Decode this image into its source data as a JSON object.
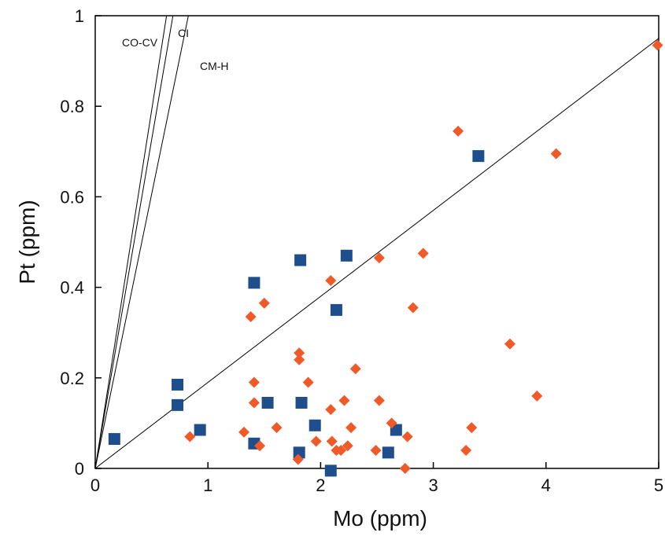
{
  "chart_data": {
    "type": "scatter",
    "xlabel": "Mo (ppm)",
    "ylabel": "Pt (ppm)",
    "xlim": [
      0,
      5
    ],
    "ylim": [
      0,
      1
    ],
    "x_ticks": [
      0,
      1,
      2,
      3,
      4,
      5
    ],
    "y_ticks": [
      0,
      0.2,
      0.4,
      0.6,
      0.8,
      1
    ],
    "x_tick_labels": [
      "0",
      "1",
      "2",
      "3",
      "4",
      "5"
    ],
    "y_tick_labels": [
      "0",
      "0.2",
      "0.4",
      "0.6",
      "0.8",
      "1"
    ],
    "grid": false,
    "series": [
      {
        "marker": "square",
        "color": "#1f4e8c",
        "points": [
          [
            0.17,
            0.065
          ],
          [
            0.73,
            0.185
          ],
          [
            0.73,
            0.14
          ],
          [
            0.93,
            0.085
          ],
          [
            1.41,
            0.41
          ],
          [
            1.41,
            0.055
          ],
          [
            1.53,
            0.145
          ],
          [
            1.82,
            0.46
          ],
          [
            1.83,
            0.145
          ],
          [
            1.81,
            0.035
          ],
          [
            1.95,
            0.095
          ],
          [
            2.09,
            -0.005
          ],
          [
            2.14,
            0.35
          ],
          [
            2.23,
            0.47
          ],
          [
            2.6,
            0.035
          ],
          [
            2.67,
            0.085
          ],
          [
            3.4,
            0.69
          ]
        ]
      },
      {
        "marker": "diamond",
        "color": "#f05a28",
        "points": [
          [
            0.84,
            0.07
          ],
          [
            1.32,
            0.08
          ],
          [
            1.38,
            0.335
          ],
          [
            1.41,
            0.19
          ],
          [
            1.41,
            0.145
          ],
          [
            1.46,
            0.05
          ],
          [
            1.5,
            0.365
          ],
          [
            1.61,
            0.09
          ],
          [
            1.81,
            0.255
          ],
          [
            1.81,
            0.24
          ],
          [
            1.8,
            0.02
          ],
          [
            1.89,
            0.19
          ],
          [
            1.96,
            0.06
          ],
          [
            2.09,
            0.415
          ],
          [
            2.09,
            0.13
          ],
          [
            2.1,
            0.06
          ],
          [
            2.14,
            0.04
          ],
          [
            2.18,
            0.04
          ],
          [
            2.21,
            0.15
          ],
          [
            2.24,
            0.05
          ],
          [
            2.27,
            0.09
          ],
          [
            2.31,
            0.22
          ],
          [
            2.49,
            0.04
          ],
          [
            2.52,
            0.465
          ],
          [
            2.52,
            0.15
          ],
          [
            2.63,
            0.1
          ],
          [
            2.75,
            0.0
          ],
          [
            2.77,
            0.07
          ],
          [
            2.82,
            0.355
          ],
          [
            2.91,
            0.475
          ],
          [
            3.22,
            0.745
          ],
          [
            3.29,
            0.04
          ],
          [
            3.34,
            0.09
          ],
          [
            3.68,
            0.275
          ],
          [
            3.92,
            0.16
          ],
          [
            4.09,
            0.695
          ],
          [
            4.99,
            0.935
          ]
        ]
      }
    ],
    "reference_lines": [
      {
        "label": "CO-CV",
        "slope": 1.58
      },
      {
        "label": "CI",
        "slope": 1.45
      },
      {
        "label": "CM-H",
        "slope": 1.21
      },
      {
        "slope": 0.19
      }
    ]
  }
}
